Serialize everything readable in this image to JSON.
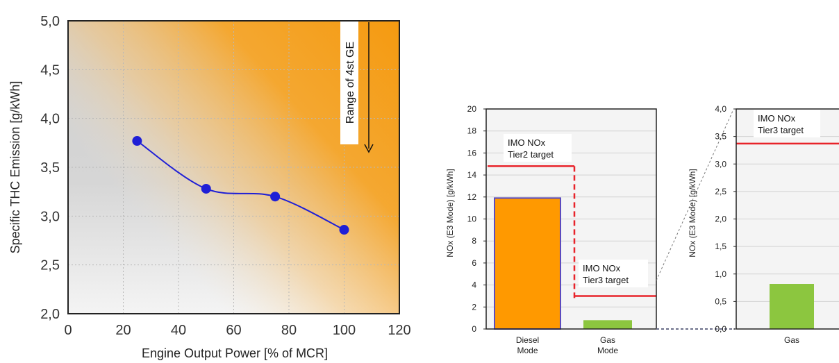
{
  "chart_data": [
    {
      "type": "line",
      "title": "",
      "xlabel": "Engine Output Power [% of MCR]",
      "ylabel": "Specific THC Emission  [g/kWh]",
      "xlim": [
        0,
        120
      ],
      "ylim": [
        2.0,
        5.0
      ],
      "x_ticks": [
        "0",
        "20",
        "40",
        "60",
        "80",
        "100",
        "120"
      ],
      "y_ticks": [
        "2,0",
        "2,5",
        "3,0",
        "3,5",
        "4,0",
        "4,5",
        "5,0"
      ],
      "grid": true,
      "series": [
        {
          "values": [
            {
              "x": 25,
              "y": 3.77
            },
            {
              "x": 50,
              "y": 3.28
            },
            {
              "x": 75,
              "y": 3.2
            },
            {
              "x": 100,
              "y": 2.86
            }
          ]
        }
      ],
      "annotation": "Range of 4st GE",
      "colors": {
        "line": "#1f1fd6",
        "band_orange": "#f7a21e",
        "band_grey": "#d4d4d4"
      }
    },
    {
      "type": "bar",
      "categories": [
        [
          "Diesel",
          "Mode"
        ],
        [
          "Gas",
          "Mode"
        ]
      ],
      "values": [
        11.9,
        0.8
      ],
      "ylabel": "NOx (E3 Mode) [g/kWh]",
      "ylim": [
        0,
        20
      ],
      "y_ticks": [
        "0",
        "2",
        "4",
        "6",
        "8",
        "10",
        "12",
        "14",
        "16",
        "18",
        "20"
      ],
      "grid": true,
      "limits": [
        {
          "label": [
            "IMO NOx",
            "Tier2 target"
          ],
          "value": 14.8
        },
        {
          "label": [
            "IMO NOx",
            "Tier3 target"
          ],
          "value": 3.0
        }
      ],
      "colors": {
        "diesel": "#ff9900",
        "gas": "#8cc63f",
        "limit": "#e8232a"
      }
    },
    {
      "type": "bar",
      "categories": [
        "Gas"
      ],
      "values": [
        0.82
      ],
      "ylabel": "NOx (E3 Mode) [g/kWh]",
      "ylim": [
        0,
        4.0
      ],
      "y_ticks": [
        "0,0",
        "0,5",
        "1,0",
        "1,5",
        "2,0",
        "2,5",
        "3,0",
        "3,5",
        "4,0"
      ],
      "grid": true,
      "limits": [
        {
          "label": [
            "IMO NOx",
            "Tier3 target"
          ],
          "value": 3.37
        }
      ],
      "colors": {
        "gas": "#8cc63f",
        "limit": "#e8232a"
      }
    }
  ]
}
